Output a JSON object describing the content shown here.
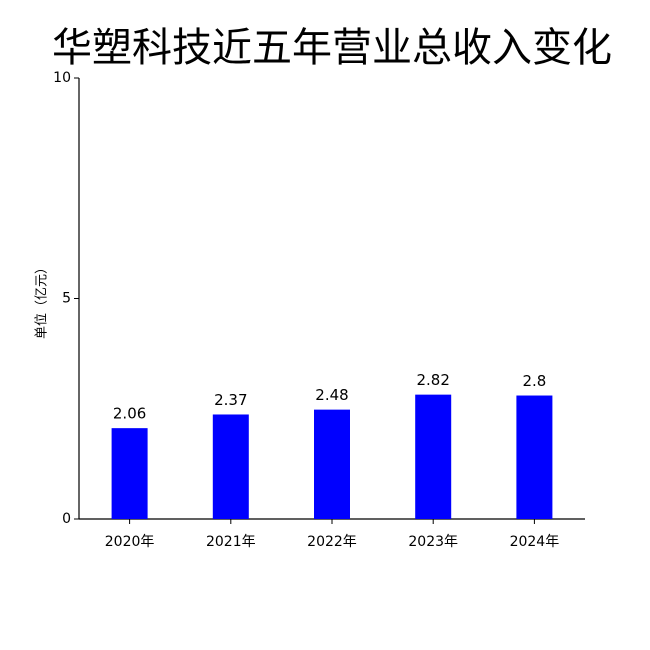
{
  "chart_data": {
    "type": "bar",
    "title": "华塑科技近五年营业总收入变化",
    "y_label": "单位（亿元）",
    "categories": [
      "2020年",
      "2021年",
      "2022年",
      "2023年",
      "2024年"
    ],
    "values": [
      2.06,
      2.37,
      2.48,
      2.82,
      2.8
    ],
    "color": "#0000ff",
    "ylim": [
      0,
      10
    ],
    "yticks": [
      0,
      5,
      10
    ],
    "grid": false
  }
}
